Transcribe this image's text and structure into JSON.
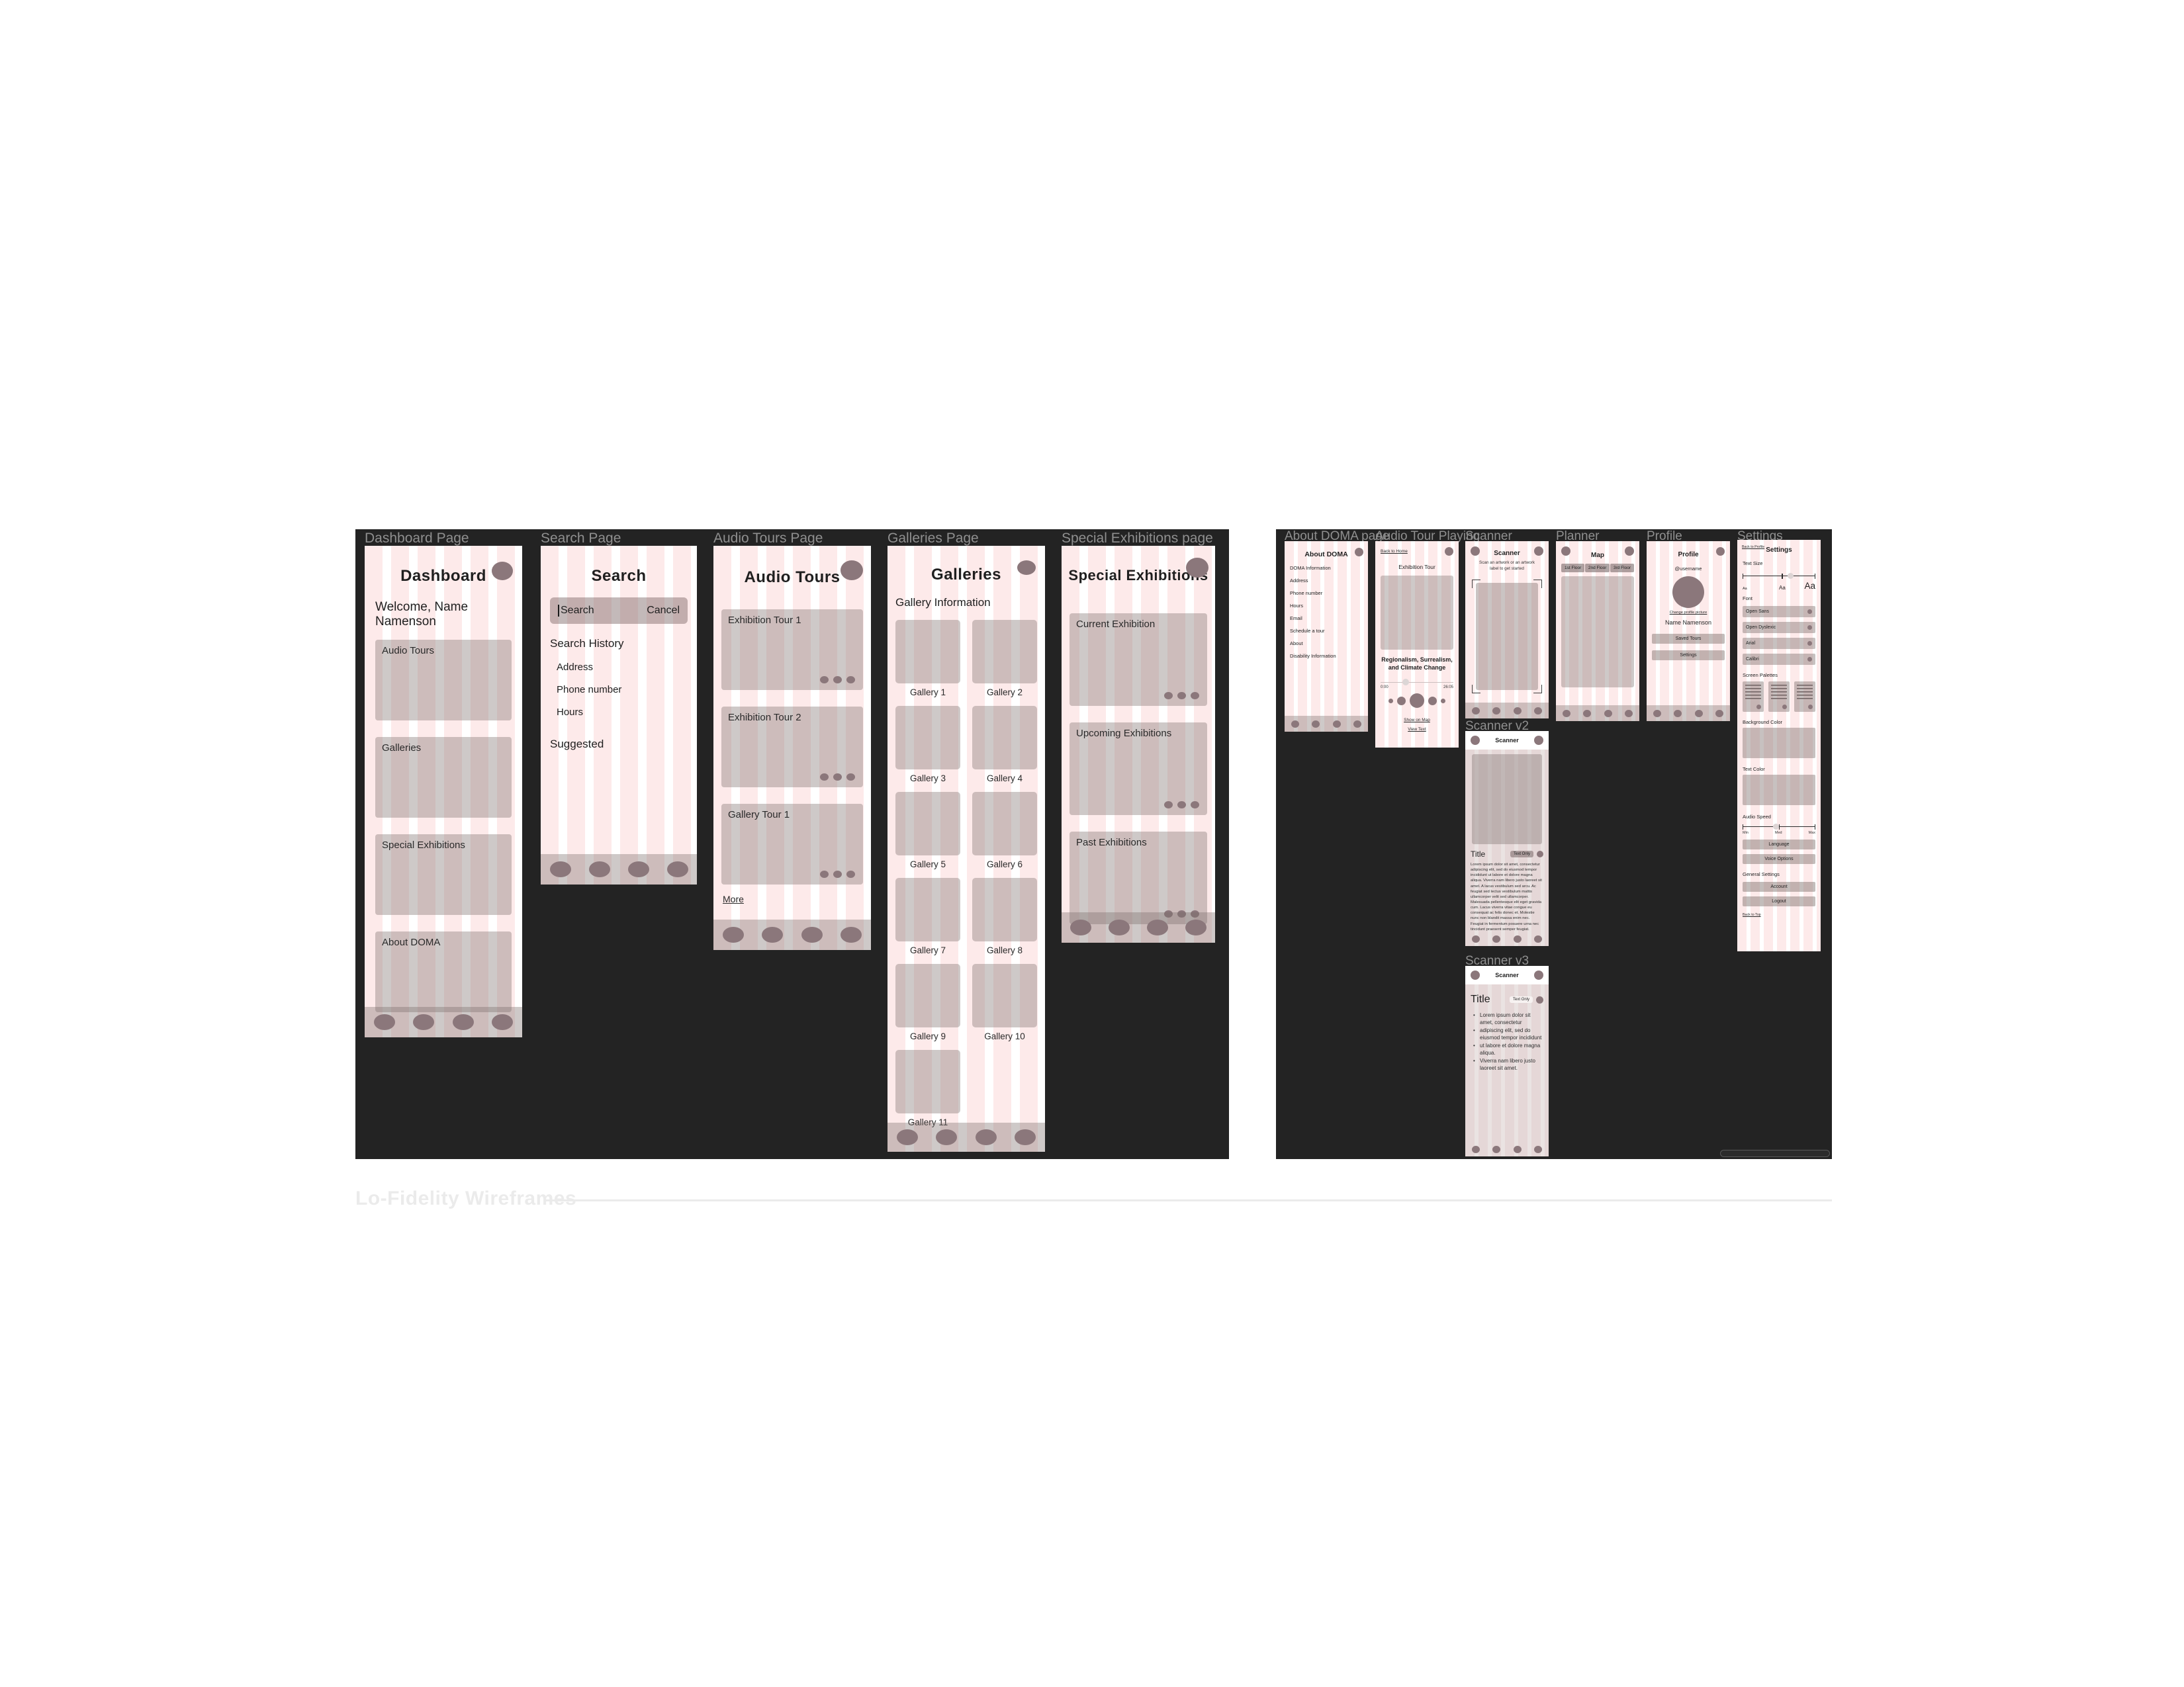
{
  "page": {
    "caption": "Lo-Fidelity Wireframes"
  },
  "colors": {
    "canvas": "#232323",
    "stripe_pink": "#fdeaea",
    "accent_mauve": "#8b777b",
    "card_gray": "#c9bcba",
    "label_gray": "#8f8f8f"
  },
  "frames": {
    "dashboard": {
      "label": "Dashboard Page",
      "title": "Dashboard",
      "welcome": "Welcome, Name Namenson",
      "cards": [
        "Audio Tours",
        "Galleries",
        "Special Exhibitions",
        "About DOMA"
      ]
    },
    "search": {
      "label": "Search Page",
      "title": "Search",
      "input_value": "Search",
      "cancel": "Cancel",
      "history_header": "Search History",
      "history": [
        "Address",
        "Phone number",
        "Hours"
      ],
      "suggested_header": "Suggested"
    },
    "audio_tours": {
      "label": "Audio Tours Page",
      "title": "Audio Tours",
      "cards": [
        "Exhibition Tour 1",
        "Exhibition Tour 2",
        "Gallery Tour 1"
      ],
      "more": "More"
    },
    "galleries": {
      "label": "Galleries Page",
      "title": "Galleries",
      "subtitle": "Gallery Information",
      "items": [
        "Gallery 1",
        "Gallery 2",
        "Gallery 3",
        "Gallery 4",
        "Gallery 5",
        "Gallery 6",
        "Gallery 7",
        "Gallery 8",
        "Gallery 9",
        "Gallery 10",
        "Gallery 11"
      ]
    },
    "special": {
      "label": "Special Exhibitions page",
      "title": "Special Exhibitions",
      "cards": [
        "Current Exhibition",
        "Upcoming Exhibitions",
        "Past Exhibitions"
      ]
    },
    "about": {
      "label": "About DOMA page",
      "title": "About DOMA",
      "items": [
        "DOMA Information",
        "Address",
        "Phone number",
        "Hours",
        "Email",
        "Schedule a tour",
        "About",
        "Disability Information"
      ]
    },
    "audio_playing": {
      "label": "Audio Tour Playing",
      "back": "Back to Home",
      "subtitle": "Exhibition Tour",
      "track_title": "Regionalism, Surrealism, and Climate Change",
      "time_start": "0:00",
      "time_end": "26:05",
      "show_on_map": "Show on Map",
      "view_text": "View Text"
    },
    "scanner": {
      "label": "Scanner",
      "title": "Scanner",
      "subtitle": "Scan an artwork or an artwork label to get started"
    },
    "planner": {
      "label": "Planner",
      "title": "Map",
      "tabs": [
        "1st Floor",
        "2nd Floor",
        "3rd Floor"
      ]
    },
    "profile": {
      "label": "Profile",
      "title": "Profile",
      "username": "@username",
      "change_link": "Change profile picture",
      "name": "Name Namenson",
      "buttons": [
        "Saved Tours",
        "Settings"
      ]
    },
    "settings": {
      "label": "Settings",
      "back": "Back to Profile",
      "title": "Settings",
      "text_size_label": "Text Size",
      "size_small": "Aa",
      "size_med": "Aa",
      "size_large": "Aa",
      "font_label": "Font",
      "fonts": [
        "Open Sans",
        "Open Dyslexic",
        "Arial",
        "Calibri"
      ],
      "palettes_label": "Screen Palettes",
      "bg_label": "Background Color",
      "text_color_label": "Text Color",
      "audio_label": "Audio Speed",
      "speed_marks": [
        "Min",
        "Med",
        "Max"
      ],
      "audio_buttons": [
        "Language",
        "Voice Options"
      ],
      "general_label": "General Settings",
      "general_buttons": [
        "Account",
        "Logout"
      ],
      "back_top": "Back to Top"
    },
    "scanner_v2": {
      "label": "Scanner v2",
      "title": "Scanner",
      "card_title": "Title",
      "pill": "Text Only",
      "body": "Lorem ipsum dolor sit amet, consectetur adipiscing elit, sed do eiusmod tempor incididunt ut labore et dolore magna aliqua. Viverra nam libero justo laoreet sit amet. A lacus vestibulum sed arcu. Ac feugiat sed lectus vestibulum mattis ullamcorper velit sed ullamcorper. Malesuada pellentesque elit eget gravida cum. Lacus viverra vitae congue eu consequat ac felis donec et. Molestie nunc non blandit massa enim nec. Feugiat in fermentum posuere urna nec tincidunt praesent semper feugiat."
    },
    "scanner_v3": {
      "label": "Scanner v3",
      "title": "Scanner",
      "card_title": "Title",
      "pill": "Text Only",
      "bullets": [
        "Lorem ipsum dolor sit amet, consectetur",
        "adipiscing elit, sed do eiusmod tempor incididunt",
        "ut labore et dolore magna aliqua.",
        "Viverra nam libero justo laoreet sit amet."
      ]
    }
  }
}
